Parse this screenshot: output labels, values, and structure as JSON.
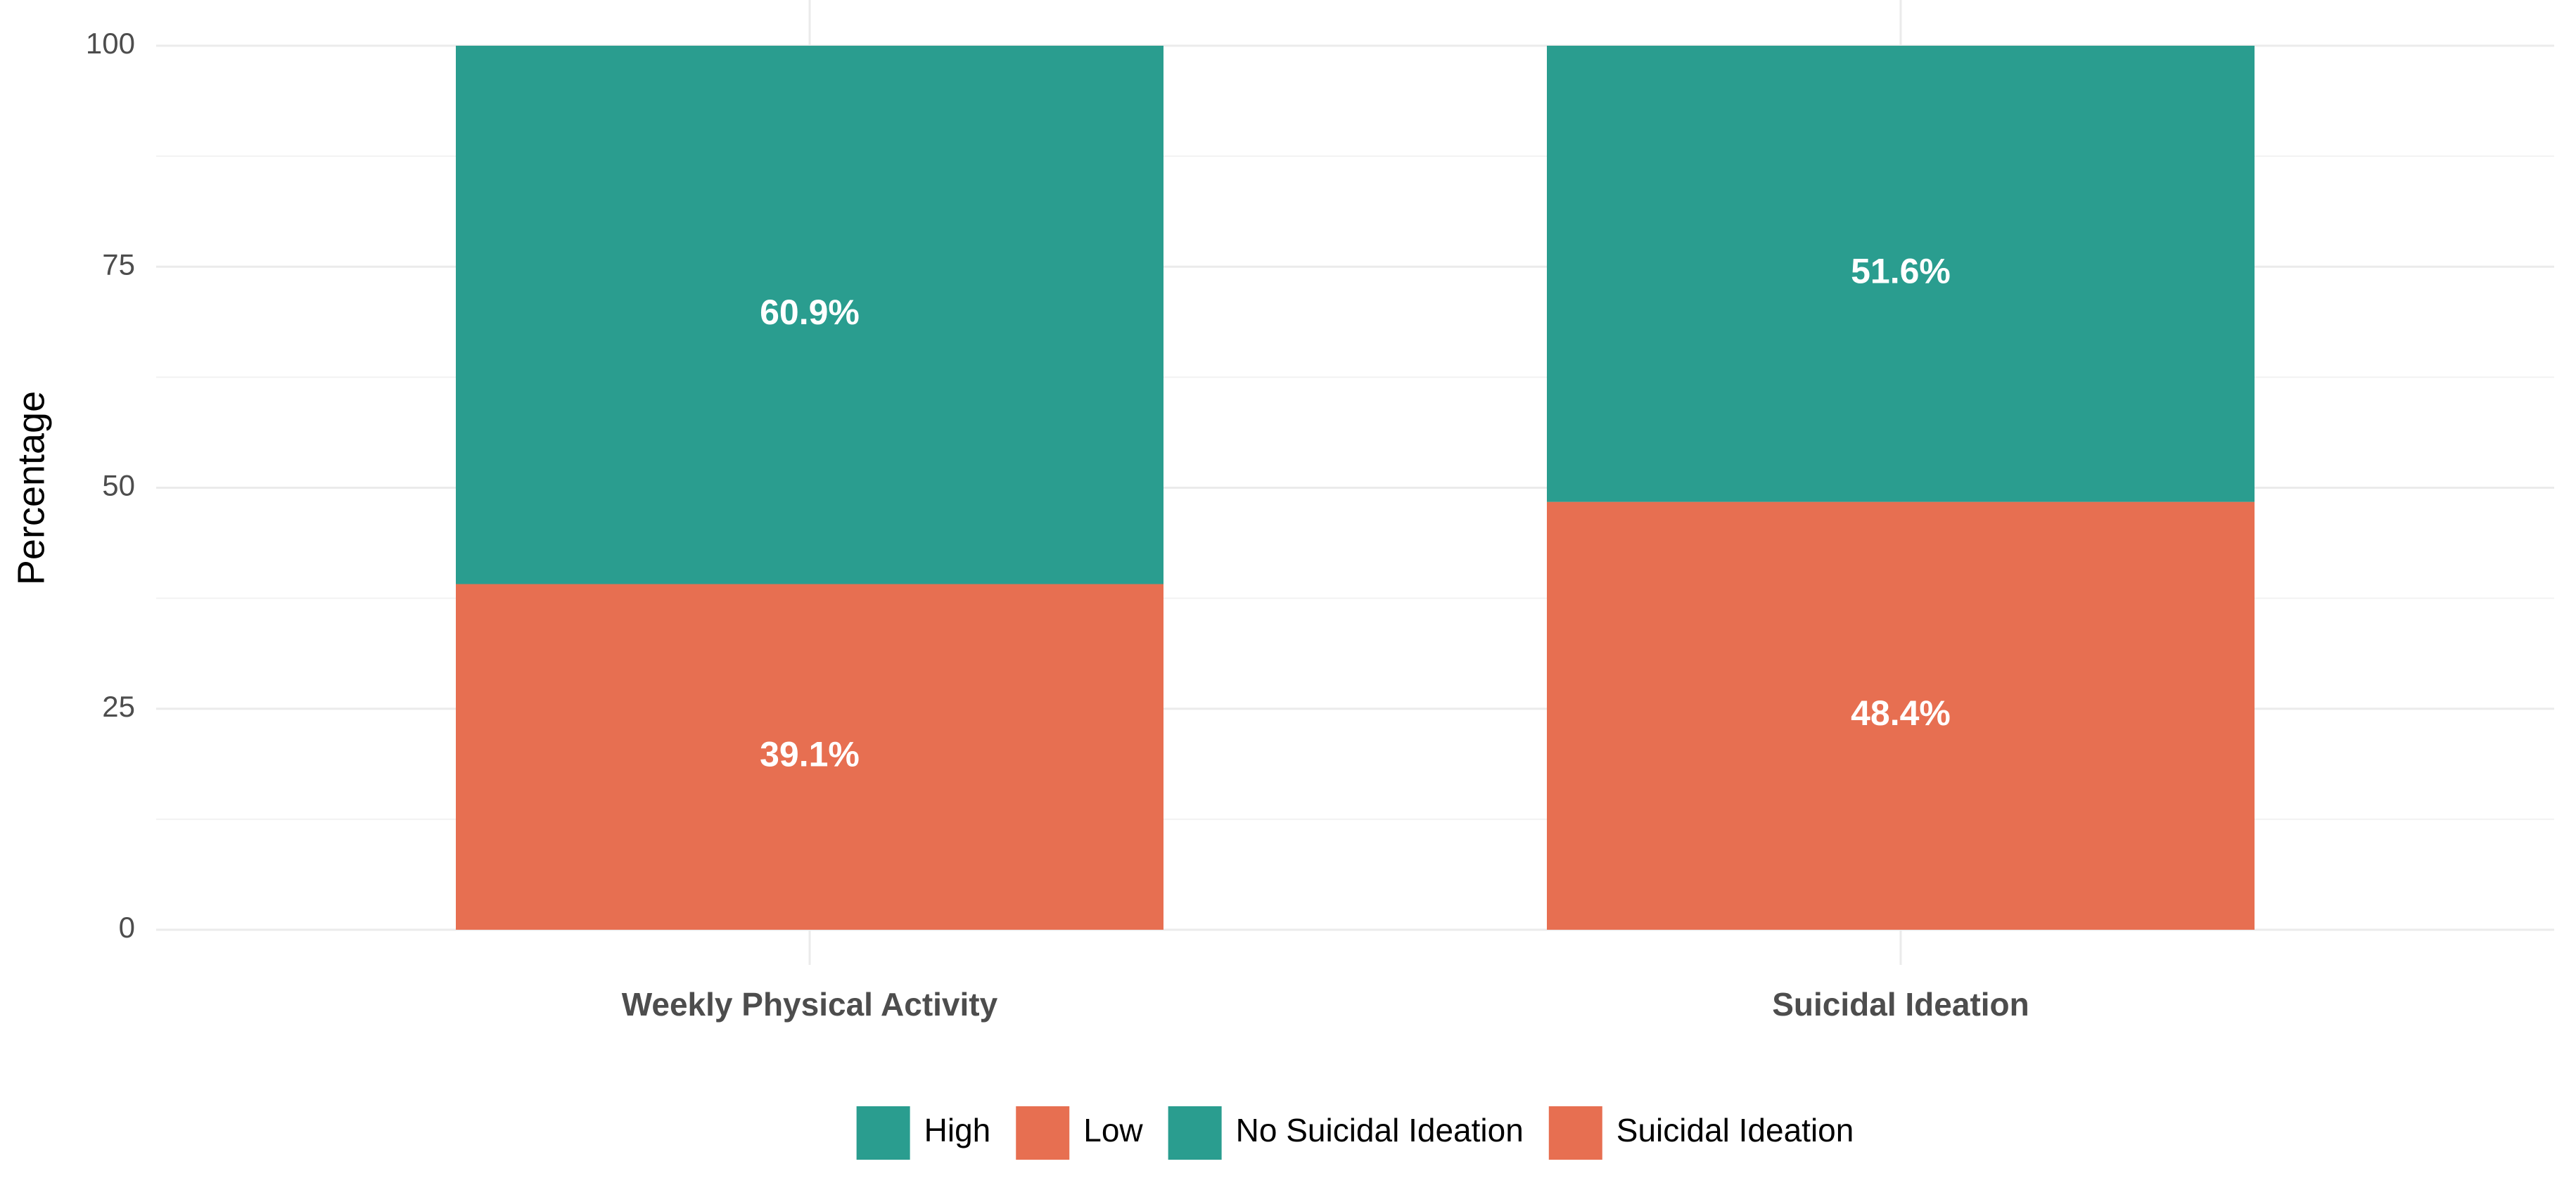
{
  "chart_data": {
    "type": "stacked-bar",
    "categories": [
      "Weekly Physical Activity",
      "Suicidal Ideation"
    ],
    "series": [
      {
        "name": "High",
        "color": "#2a9d8f",
        "values": [
          60.9,
          null
        ],
        "value_labels": [
          "60.9%",
          null
        ]
      },
      {
        "name": "Low",
        "color": "#e76f51",
        "values": [
          39.1,
          null
        ],
        "value_labels": [
          "39.1%",
          null
        ]
      },
      {
        "name": "No Suicidal Ideation",
        "color": "#2a9d8f",
        "values": [
          null,
          51.6
        ],
        "value_labels": [
          null,
          "51.6%"
        ]
      },
      {
        "name": "Suicidal Ideation",
        "color": "#e76f51",
        "values": [
          null,
          48.4
        ],
        "value_labels": [
          null,
          "48.4%"
        ]
      }
    ],
    "stack_order": [
      1,
      0,
      3,
      2
    ],
    "ylabel": "Percentage",
    "ylim": [
      0,
      100
    ],
    "yticks": [
      0,
      25,
      50,
      75,
      100
    ],
    "grid": true,
    "legend": "bottom"
  }
}
